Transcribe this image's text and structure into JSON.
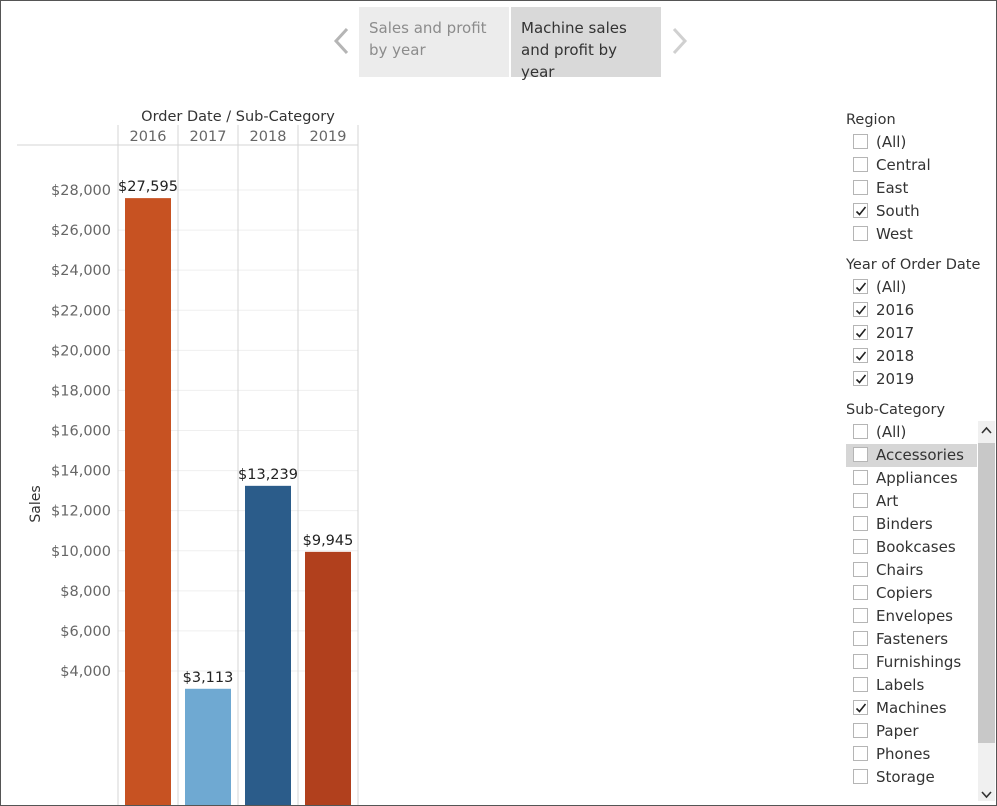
{
  "story": {
    "tabs": [
      {
        "label": "Sales and profit by year",
        "active": false
      },
      {
        "label": "Machine sales and profit by year",
        "active": true
      }
    ]
  },
  "chart_data": {
    "type": "bar",
    "column_header": "Order Date / Sub-Category",
    "categories": [
      "2016",
      "2017",
      "2018",
      "2019"
    ],
    "values": [
      27595,
      3113,
      13239,
      9945
    ],
    "value_labels": [
      "$27,595",
      "$3,113",
      "$13,239",
      "$9,945"
    ],
    "colors": [
      "#c75222",
      "#6fa9d2",
      "#2b5c8a",
      "#b1401d"
    ],
    "ylabel": "Sales",
    "yticks": [
      4000,
      6000,
      8000,
      10000,
      12000,
      14000,
      16000,
      18000,
      20000,
      22000,
      24000,
      26000,
      28000
    ],
    "ytick_labels": [
      "$4,000",
      "$6,000",
      "$8,000",
      "$10,000",
      "$12,000",
      "$14,000",
      "$16,000",
      "$18,000",
      "$20,000",
      "$22,000",
      "$24,000",
      "$26,000",
      "$28,000"
    ],
    "ylim_visible": [
      2600,
      29500
    ],
    "grid": true
  },
  "filters": {
    "region": {
      "title": "Region",
      "options": [
        {
          "label": "(All)",
          "checked": false
        },
        {
          "label": "Central",
          "checked": false
        },
        {
          "label": "East",
          "checked": false
        },
        {
          "label": "South",
          "checked": true
        },
        {
          "label": "West",
          "checked": false
        }
      ]
    },
    "year": {
      "title": "Year of Order Date",
      "options": [
        {
          "label": "(All)",
          "checked": true
        },
        {
          "label": "2016",
          "checked": true
        },
        {
          "label": "2017",
          "checked": true
        },
        {
          "label": "2018",
          "checked": true
        },
        {
          "label": "2019",
          "checked": true
        }
      ]
    },
    "subcategory": {
      "title": "Sub-Category",
      "options": [
        {
          "label": "(All)",
          "checked": false
        },
        {
          "label": "Accessories",
          "checked": false,
          "highlighted": true
        },
        {
          "label": "Appliances",
          "checked": false
        },
        {
          "label": "Art",
          "checked": false
        },
        {
          "label": "Binders",
          "checked": false
        },
        {
          "label": "Bookcases",
          "checked": false
        },
        {
          "label": "Chairs",
          "checked": false
        },
        {
          "label": "Copiers",
          "checked": false
        },
        {
          "label": "Envelopes",
          "checked": false
        },
        {
          "label": "Fasteners",
          "checked": false
        },
        {
          "label": "Furnishings",
          "checked": false
        },
        {
          "label": "Labels",
          "checked": false
        },
        {
          "label": "Machines",
          "checked": true
        },
        {
          "label": "Paper",
          "checked": false
        },
        {
          "label": "Phones",
          "checked": false
        },
        {
          "label": "Storage",
          "checked": false
        }
      ]
    }
  },
  "icons": {
    "prev": "chevron-left-icon",
    "next": "chevron-right-icon",
    "check": "checkmark-icon",
    "scroll_up": "chevron-up-icon",
    "scroll_down": "chevron-down-icon"
  }
}
